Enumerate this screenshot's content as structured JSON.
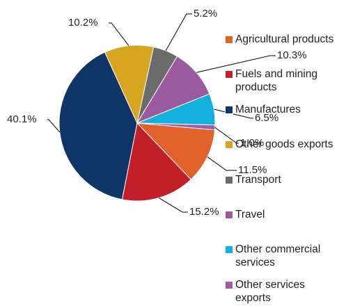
{
  "chart_data": {
    "type": "pie",
    "categories": [
      "Agricultural products",
      "Fuels and mining products",
      "Manufactures",
      "Other goods exports",
      "Transport",
      "Travel",
      "Other commercial services",
      "Other services exports"
    ],
    "values": [
      11.5,
      15.2,
      40.1,
      10.2,
      5.2,
      10.3,
      6.5,
      1.0
    ],
    "value_labels": [
      "11.5%",
      "15.2%",
      "40.1%",
      "10.2%",
      "5.2%",
      "10.3%",
      "6.5%",
      "1.0%"
    ],
    "colors": [
      "#e2622b",
      "#c21f2a",
      "#0e3566",
      "#d8a51f",
      "#6b6b6b",
      "#9b5a9e",
      "#11b0df",
      "#a25aa8"
    ],
    "legend": "right"
  }
}
